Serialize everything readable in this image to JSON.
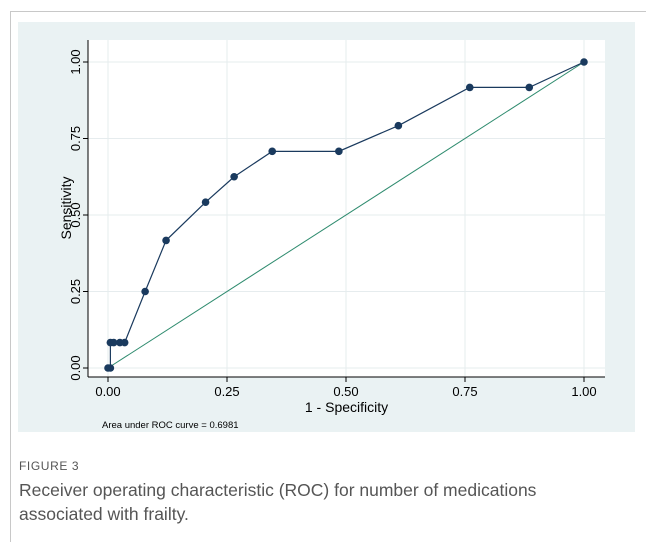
{
  "chart_data": {
    "type": "line",
    "xlabel": "1 - Specificity",
    "ylabel": "Sensitivity",
    "xlim": [
      0,
      1
    ],
    "ylim": [
      0,
      1
    ],
    "xticks": [
      "0.00",
      "0.25",
      "0.50",
      "0.75",
      "1.00"
    ],
    "yticks": [
      "0.00",
      "0.25",
      "0.50",
      "0.75",
      "1.00"
    ],
    "grid": true,
    "series": [
      {
        "x": [
          0.0,
          0.005,
          0.005,
          0.012,
          0.025,
          0.035,
          0.078,
          0.122,
          0.205,
          0.265,
          0.345,
          0.485,
          0.61,
          0.76,
          0.885,
          1.0
        ],
        "y": [
          0.0,
          0.0,
          0.083,
          0.083,
          0.083,
          0.083,
          0.25,
          0.417,
          0.542,
          0.625,
          0.708,
          0.708,
          0.792,
          0.917,
          0.917,
          1.0
        ],
        "color": "#1a3a5e"
      },
      {
        "x": [
          0,
          1
        ],
        "y": [
          0,
          1
        ],
        "color": "#2e8b6e"
      }
    ],
    "annotations": [
      "Area under ROC curve = 0.6981"
    ]
  },
  "caption": {
    "label": "FIGURE 3",
    "text": "Receiver operating characteristic (ROC) for number of medications associated with frailty."
  }
}
